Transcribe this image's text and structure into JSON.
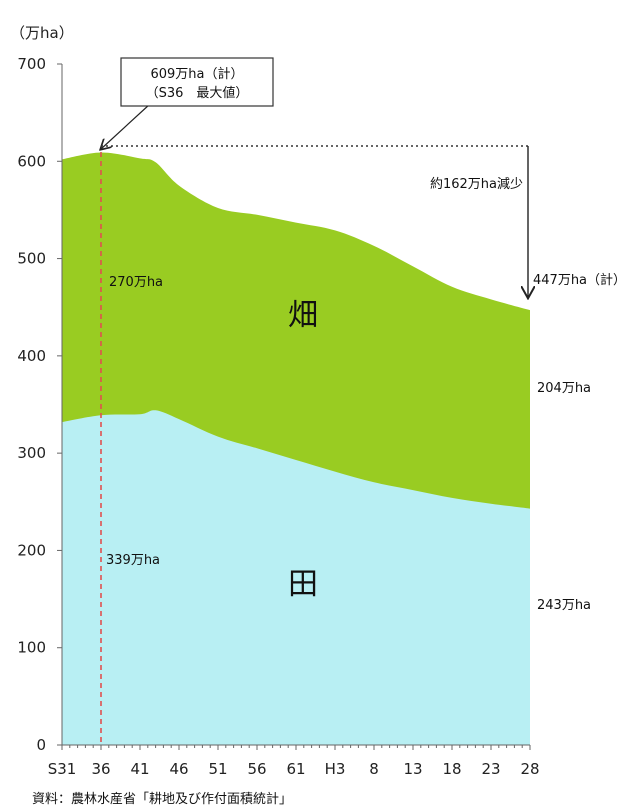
{
  "chart_data": {
    "type": "area",
    "stacked": true,
    "unit_label": "（万ha）",
    "ylim": [
      0,
      700
    ],
    "y_ticks": [
      0,
      100,
      200,
      300,
      400,
      500,
      600,
      700
    ],
    "x_ticks": [
      "S31",
      "36",
      "41",
      "46",
      "51",
      "56",
      "61",
      "H3",
      "8",
      "13",
      "18",
      "23",
      "28"
    ],
    "x": [
      "S31",
      "S36",
      "S41",
      "S43",
      "S46",
      "S51",
      "S56",
      "S61",
      "H3",
      "H8",
      "H13",
      "H18",
      "H23",
      "H28"
    ],
    "series": [
      {
        "name": "田",
        "values": [
          332,
          339,
          340,
          344,
          335,
          317,
          305,
          293,
          281,
          270,
          262,
          254,
          248,
          243
        ]
      },
      {
        "name": "畑",
        "values": [
          270,
          270,
          263,
          255,
          240,
          235,
          240,
          244,
          248,
          243,
          230,
          217,
          210,
          204
        ]
      }
    ],
    "colors": {
      "paddy": "#b8eff3",
      "upland": "#99cc22",
      "marker_line": "#e05050"
    },
    "annotations": {
      "peak_line1": "609万ha（計）",
      "peak_line2": "（S36　最大値）",
      "decrease": "約162万ha減少",
      "end_total": "447万ha（計）",
      "upland_start": "270万ha",
      "upland_end": "204万ha",
      "paddy_start": "339万ha",
      "paddy_end": "243万ha",
      "upland_label": "畑",
      "paddy_label": "田"
    },
    "source": "資料：農林水産省「耕地及び作付面積統計」"
  }
}
